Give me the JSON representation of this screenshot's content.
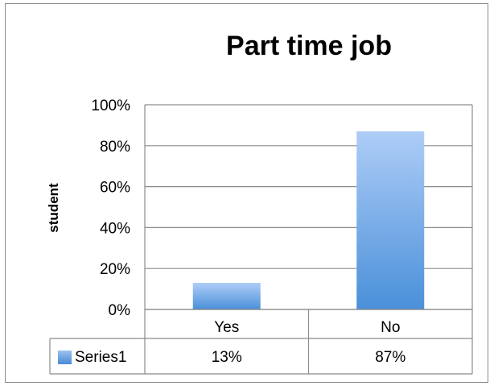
{
  "chart_data": {
    "type": "bar",
    "title": "Part time job",
    "ylabel": "student",
    "xlabel": "",
    "categories": [
      "Yes",
      "No"
    ],
    "series": [
      {
        "name": "Series1",
        "values": [
          0.13,
          0.87
        ],
        "value_labels": [
          "13%",
          "87%"
        ]
      }
    ],
    "ylim": [
      0,
      1
    ],
    "yticks": [
      0,
      0.2,
      0.4,
      0.6,
      0.8,
      1.0
    ],
    "ytick_labels": [
      "0%",
      "20%",
      "40%",
      "60%",
      "80%",
      "100%"
    ],
    "grid": true,
    "legend_placement": "data-table",
    "data_table": true,
    "colors": {
      "bar_top": "#aecdf7",
      "bar_bottom": "#4a90d9",
      "grid": "#8c8c8c",
      "legend_key": "#5b9bd5"
    }
  }
}
